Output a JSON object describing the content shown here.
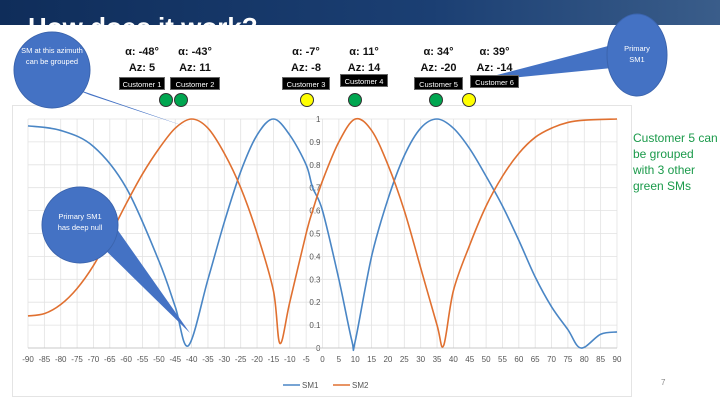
{
  "slide": {
    "title": "How does it work?",
    "page_number": "7",
    "side_note": "Customer 5 can be grouped with 3 other green SMs",
    "callouts": [
      "SM at this azimuth can be grouped",
      "Primary SM1 has deep null",
      "Primary SM1"
    ]
  },
  "customers": [
    {
      "label": "Customer 1",
      "alpha": "α: -48°",
      "az": "Az: 5",
      "status": "green"
    },
    {
      "label": "Customer 2",
      "alpha": "α: -43°",
      "az": "Az: 11",
      "status": "green"
    },
    {
      "label": "Customer 3",
      "alpha": "α: -7°",
      "az": "Az: -8",
      "status": "yellow"
    },
    {
      "label": "Customer 4",
      "alpha": "α: 11°",
      "az": "Az: 14",
      "status": "green"
    },
    {
      "label": "Customer 5",
      "alpha": "α: 34°",
      "az": "Az: -20",
      "status": "green"
    },
    {
      "label": "Customer 6",
      "alpha": "α: 39°",
      "az": "Az: -14",
      "status": "yellow"
    }
  ],
  "colors": {
    "green": "#00a650",
    "yellow": "#ffff00",
    "callout": "#4472c4",
    "sm1": "#4a86c5",
    "sm2": "#e07030"
  },
  "chart_data": {
    "type": "line",
    "title": "",
    "xlabel": "",
    "ylabel": "",
    "xlim": [
      -90,
      90
    ],
    "ylim": [
      0,
      1
    ],
    "grid": true,
    "legend": "bottom",
    "xticks": [
      -90,
      -85,
      -80,
      -75,
      -70,
      -65,
      -60,
      -55,
      -50,
      -45,
      -40,
      -35,
      -30,
      -25,
      -20,
      -15,
      -10,
      -5,
      0,
      5,
      10,
      15,
      20,
      25,
      30,
      35,
      40,
      45,
      50,
      55,
      60,
      65,
      70,
      75,
      80,
      85,
      90
    ],
    "yticks": [
      0,
      0.1,
      0.2,
      0.3,
      0.4,
      0.5,
      0.6,
      0.7,
      0.8,
      0.9,
      1
    ],
    "series": [
      {
        "name": "SM1",
        "x": [
          -90,
          -80,
          -70,
          -60,
          -50,
          -45,
          -41,
          -35,
          -30,
          -25,
          -20,
          -15,
          -10,
          -5,
          -3,
          0,
          5,
          9,
          10,
          15,
          20,
          25,
          30,
          35,
          40,
          45,
          50,
          55,
          60,
          65,
          70,
          75,
          79,
          85,
          90
        ],
        "y": [
          0.97,
          0.95,
          0.88,
          0.7,
          0.38,
          0.18,
          0.01,
          0.3,
          0.55,
          0.77,
          0.93,
          1.0,
          0.93,
          0.8,
          0.7,
          0.6,
          0.3,
          0.03,
          0.03,
          0.4,
          0.65,
          0.84,
          0.96,
          1.0,
          0.96,
          0.87,
          0.75,
          0.62,
          0.47,
          0.31,
          0.18,
          0.08,
          0.0,
          0.06,
          0.07
        ]
      },
      {
        "name": "SM2",
        "x": [
          -90,
          -85,
          -80,
          -75,
          -70,
          -65,
          -60,
          -55,
          -50,
          -45,
          -40,
          -35,
          -30,
          -25,
          -20,
          -15,
          -13,
          -10,
          -5,
          -3,
          0,
          5,
          10,
          15,
          20,
          25,
          30,
          35,
          37,
          40,
          45,
          50,
          55,
          60,
          65,
          70,
          75,
          80,
          90
        ],
        "y": [
          0.14,
          0.15,
          0.19,
          0.26,
          0.36,
          0.49,
          0.63,
          0.76,
          0.87,
          0.96,
          1.0,
          0.96,
          0.85,
          0.7,
          0.5,
          0.25,
          0.02,
          0.2,
          0.5,
          0.6,
          0.73,
          0.9,
          1.0,
          0.95,
          0.8,
          0.6,
          0.35,
          0.1,
          0.01,
          0.25,
          0.45,
          0.62,
          0.75,
          0.85,
          0.92,
          0.96,
          0.985,
          0.995,
          1.0
        ]
      }
    ]
  }
}
